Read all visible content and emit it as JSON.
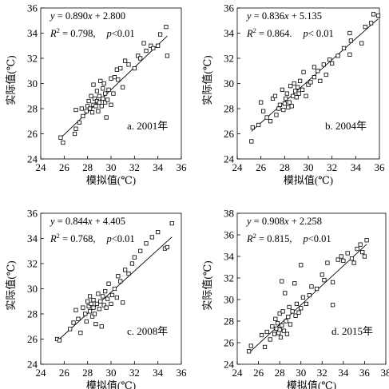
{
  "chart_data": [
    {
      "type": "scatter",
      "panel": "a",
      "label": "a. 2001年",
      "xlabel": "模拟值(℃)",
      "ylabel": "实际值(℃)",
      "xlim": [
        24,
        36
      ],
      "ylim": [
        24,
        36
      ],
      "xticks": [
        "24",
        "26",
        "28",
        "30",
        "32",
        "34",
        "36"
      ],
      "yticks": [
        "24",
        "26",
        "28",
        "30",
        "32",
        "34",
        "36"
      ],
      "eq": {
        "y": "y",
        "eqsign": " = 0.890",
        "x": "x",
        "rest": " + 2.800",
        "r": "R",
        "sup": "2",
        "r2": " = 0.798,",
        "p": "p",
        "pval": "<0.01"
      },
      "fit": {
        "slope": 0.89,
        "intercept": 2.8
      },
      "points": [
        [
          25.7,
          25.7
        ],
        [
          25.9,
          25.3
        ],
        [
          26.9,
          26.0
        ],
        [
          27.0,
          26.4
        ],
        [
          27.0,
          27.9
        ],
        [
          27.3,
          26.9
        ],
        [
          27.5,
          28.0
        ],
        [
          27.6,
          27.4
        ],
        [
          27.9,
          27.8
        ],
        [
          28.0,
          28.2
        ],
        [
          28.1,
          28.6
        ],
        [
          28.2,
          28.0
        ],
        [
          28.3,
          29.0
        ],
        [
          28.4,
          27.7
        ],
        [
          28.5,
          28.3
        ],
        [
          28.5,
          29.9
        ],
        [
          28.6,
          28.8
        ],
        [
          28.7,
          28.2
        ],
        [
          28.8,
          28.6
        ],
        [
          28.8,
          29.4
        ],
        [
          28.9,
          27.8
        ],
        [
          29.0,
          28.5
        ],
        [
          29.0,
          29.0
        ],
        [
          29.1,
          30.2
        ],
        [
          29.2,
          28.2
        ],
        [
          29.3,
          28.8
        ],
        [
          29.3,
          29.6
        ],
        [
          29.4,
          30.0
        ],
        [
          29.5,
          28.5
        ],
        [
          29.5,
          29.2
        ],
        [
          29.6,
          27.3
        ],
        [
          29.7,
          28.7
        ],
        [
          29.8,
          29.5
        ],
        [
          30.0,
          30.4
        ],
        [
          30.0,
          28.3
        ],
        [
          30.2,
          29.2
        ],
        [
          30.3,
          30.5
        ],
        [
          30.5,
          31.1
        ],
        [
          30.6,
          30.3
        ],
        [
          30.8,
          31.2
        ],
        [
          31.0,
          29.7
        ],
        [
          31.2,
          31.8
        ],
        [
          31.5,
          31.5
        ],
        [
          32.0,
          31.2
        ],
        [
          32.3,
          32.2
        ],
        [
          32.5,
          32.0
        ],
        [
          32.8,
          33.2
        ],
        [
          33.0,
          32.6
        ],
        [
          33.4,
          33.0
        ],
        [
          33.6,
          32.8
        ],
        [
          34.0,
          33.0
        ],
        [
          34.2,
          33.9
        ],
        [
          34.7,
          34.5
        ],
        [
          34.8,
          32.2
        ]
      ]
    },
    {
      "type": "scatter",
      "panel": "b",
      "label": "b. 2004年",
      "xlabel": "模拟值(℃)",
      "ylabel": "实际值(℃)",
      "xlim": [
        24,
        36
      ],
      "ylim": [
        24,
        36
      ],
      "xticks": [
        "24",
        "26",
        "28",
        "30",
        "32",
        "34",
        "36"
      ],
      "yticks": [
        "24",
        "26",
        "28",
        "30",
        "32",
        "34",
        "36"
      ],
      "eq": {
        "y": "y",
        "eqsign": " = 0.836",
        "x": "x",
        "rest": " + 5.135",
        "r": "R",
        "sup": "2",
        "r2": " = 0.864.",
        "p": "p",
        "pval": "< 0.01"
      },
      "fit": {
        "slope": 0.836,
        "intercept": 5.135
      },
      "points": [
        [
          25.2,
          25.4
        ],
        [
          25.3,
          26.5
        ],
        [
          25.8,
          26.7
        ],
        [
          26.0,
          28.5
        ],
        [
          26.2,
          27.8
        ],
        [
          26.5,
          27.3
        ],
        [
          26.8,
          27.0
        ],
        [
          27.0,
          28.8
        ],
        [
          27.2,
          29.0
        ],
        [
          27.3,
          27.5
        ],
        [
          27.5,
          28.0
        ],
        [
          27.6,
          28.3
        ],
        [
          27.8,
          29.5
        ],
        [
          27.9,
          27.9
        ],
        [
          28.0,
          28.4
        ],
        [
          28.1,
          28.8
        ],
        [
          28.2,
          29.2
        ],
        [
          28.3,
          28.1
        ],
        [
          28.4,
          28.5
        ],
        [
          28.5,
          29.8
        ],
        [
          28.6,
          28.2
        ],
        [
          28.7,
          29.0
        ],
        [
          28.8,
          30.0
        ],
        [
          28.9,
          29.4
        ],
        [
          29.0,
          28.9
        ],
        [
          29.1,
          29.7
        ],
        [
          29.2,
          29.2
        ],
        [
          29.3,
          30.2
        ],
        [
          29.5,
          29.5
        ],
        [
          29.6,
          30.9
        ],
        [
          29.8,
          29.0
        ],
        [
          30.0,
          29.9
        ],
        [
          30.2,
          30.1
        ],
        [
          30.5,
          30.5
        ],
        [
          30.5,
          31.3
        ],
        [
          30.8,
          31.0
        ],
        [
          31.0,
          30.2
        ],
        [
          31.3,
          31.5
        ],
        [
          31.5,
          30.7
        ],
        [
          31.8,
          31.9
        ],
        [
          32.0,
          31.6
        ],
        [
          32.5,
          32.2
        ],
        [
          33.0,
          32.8
        ],
        [
          33.5,
          32.3
        ],
        [
          33.5,
          34.0
        ],
        [
          33.6,
          33.4
        ],
        [
          34.5,
          33.2
        ],
        [
          34.8,
          34.5
        ],
        [
          35.3,
          34.8
        ],
        [
          35.5,
          35.5
        ],
        [
          35.9,
          35.4
        ]
      ]
    },
    {
      "type": "scatter",
      "panel": "c",
      "label": "c. 2008年",
      "xlabel": "模拟值(℃)",
      "ylabel": "实际值(℃)",
      "xlim": [
        24,
        36
      ],
      "ylim": [
        24,
        36
      ],
      "xticks": [
        "24",
        "26",
        "28",
        "30",
        "32",
        "34",
        "36"
      ],
      "yticks": [
        "24",
        "26",
        "28",
        "30",
        "32",
        "34",
        "36"
      ],
      "eq": {
        "y": "y",
        "eqsign": " = 0.844",
        "x": "x",
        "rest": " + 4.405",
        "r": "R",
        "sup": "2",
        "r2": " = 0.768,",
        "p": "p",
        "pval": "<0.01"
      },
      "fit": {
        "slope": 0.844,
        "intercept": 4.405
      },
      "points": [
        [
          25.4,
          26.0
        ],
        [
          25.6,
          25.9
        ],
        [
          26.5,
          26.8
        ],
        [
          26.8,
          27.3
        ],
        [
          27.0,
          28.3
        ],
        [
          27.2,
          27.6
        ],
        [
          27.4,
          26.5
        ],
        [
          27.6,
          28.5
        ],
        [
          27.8,
          28.0
        ],
        [
          27.9,
          27.4
        ],
        [
          28.0,
          29.0
        ],
        [
          28.1,
          28.6
        ],
        [
          28.2,
          28.2
        ],
        [
          28.2,
          29.4
        ],
        [
          28.3,
          28.8
        ],
        [
          28.4,
          27.8
        ],
        [
          28.5,
          28.5
        ],
        [
          28.5,
          29.1
        ],
        [
          28.6,
          28.0
        ],
        [
          28.7,
          27.2
        ],
        [
          28.8,
          28.8
        ],
        [
          28.9,
          29.6
        ],
        [
          29.0,
          28.4
        ],
        [
          29.1,
          29.0
        ],
        [
          29.2,
          27.0
        ],
        [
          29.3,
          29.4
        ],
        [
          29.4,
          28.7
        ],
        [
          29.5,
          29.8
        ],
        [
          29.6,
          28.5
        ],
        [
          29.7,
          29.2
        ],
        [
          29.8,
          30.4
        ],
        [
          30.0,
          28.8
        ],
        [
          30.1,
          29.5
        ],
        [
          30.3,
          30.0
        ],
        [
          30.5,
          29.3
        ],
        [
          30.6,
          31.0
        ],
        [
          30.8,
          30.6
        ],
        [
          31.0,
          28.9
        ],
        [
          31.2,
          31.5
        ],
        [
          31.5,
          31.2
        ],
        [
          31.8,
          32.0
        ],
        [
          32.0,
          32.5
        ],
        [
          32.5,
          33.0
        ],
        [
          33.0,
          33.6
        ],
        [
          33.5,
          34.1
        ],
        [
          34.0,
          34.5
        ],
        [
          34.6,
          33.2
        ],
        [
          34.8,
          33.3
        ],
        [
          35.2,
          35.2
        ]
      ]
    },
    {
      "type": "scatter",
      "panel": "d",
      "label": "d. 2015年",
      "xlabel": "模拟值(℃)",
      "ylabel": "实际值(℃)",
      "xlim": [
        24,
        38
      ],
      "ylim": [
        24,
        38
      ],
      "xticks": [
        "24",
        "26",
        "28",
        "30",
        "32",
        "34",
        "36",
        "38"
      ],
      "yticks": [
        "24",
        "26",
        "28",
        "30",
        "32",
        "34",
        "36",
        "38"
      ],
      "eq": {
        "y": "y",
        "eqsign": " = 0.908",
        "x": "x",
        "rest": " + 2.258",
        "r": "R",
        "sup": "2",
        "r2": " = 0.815,",
        "p": "p",
        "pval": "<0.01"
      },
      "fit": {
        "slope": 0.908,
        "intercept": 2.258
      },
      "points": [
        [
          25.1,
          25.2
        ],
        [
          25.3,
          25.7
        ],
        [
          26.3,
          26.7
        ],
        [
          26.6,
          25.6
        ],
        [
          26.8,
          27.0
        ],
        [
          27.1,
          26.3
        ],
        [
          27.3,
          27.5
        ],
        [
          27.5,
          26.8
        ],
        [
          27.6,
          28.2
        ],
        [
          27.7,
          27.3
        ],
        [
          27.8,
          27.8
        ],
        [
          27.9,
          26.9
        ],
        [
          28.0,
          28.7
        ],
        [
          28.0,
          27.2
        ],
        [
          28.1,
          26.5
        ],
        [
          28.2,
          27.6
        ],
        [
          28.2,
          31.7
        ],
        [
          28.3,
          28.9
        ],
        [
          28.4,
          27.1
        ],
        [
          28.5,
          30.6
        ],
        [
          28.6,
          28.0
        ],
        [
          28.7,
          26.8
        ],
        [
          28.8,
          28.4
        ],
        [
          28.9,
          29.3
        ],
        [
          29.0,
          27.7
        ],
        [
          29.2,
          28.9
        ],
        [
          29.4,
          31.5
        ],
        [
          29.5,
          28.5
        ],
        [
          29.6,
          29.6
        ],
        [
          29.8,
          28.8
        ],
        [
          30.0,
          29.2
        ],
        [
          30.0,
          33.2
        ],
        [
          30.2,
          30.2
        ],
        [
          30.5,
          29.6
        ],
        [
          30.8,
          30.4
        ],
        [
          31.0,
          31.2
        ],
        [
          31.5,
          31.0
        ],
        [
          32.0,
          32.3
        ],
        [
          32.2,
          31.8
        ],
        [
          32.5,
          33.4
        ],
        [
          33.0,
          29.5
        ],
        [
          33.0,
          31.6
        ],
        [
          33.5,
          33.7
        ],
        [
          33.8,
          34.0
        ],
        [
          34.0,
          33.6
        ],
        [
          34.4,
          34.3
        ],
        [
          34.8,
          33.8
        ],
        [
          35.0,
          33.4
        ],
        [
          35.3,
          34.7
        ],
        [
          35.6,
          35.1
        ],
        [
          35.8,
          34.4
        ],
        [
          36.0,
          34.0
        ],
        [
          36.2,
          35.5
        ]
      ]
    }
  ]
}
